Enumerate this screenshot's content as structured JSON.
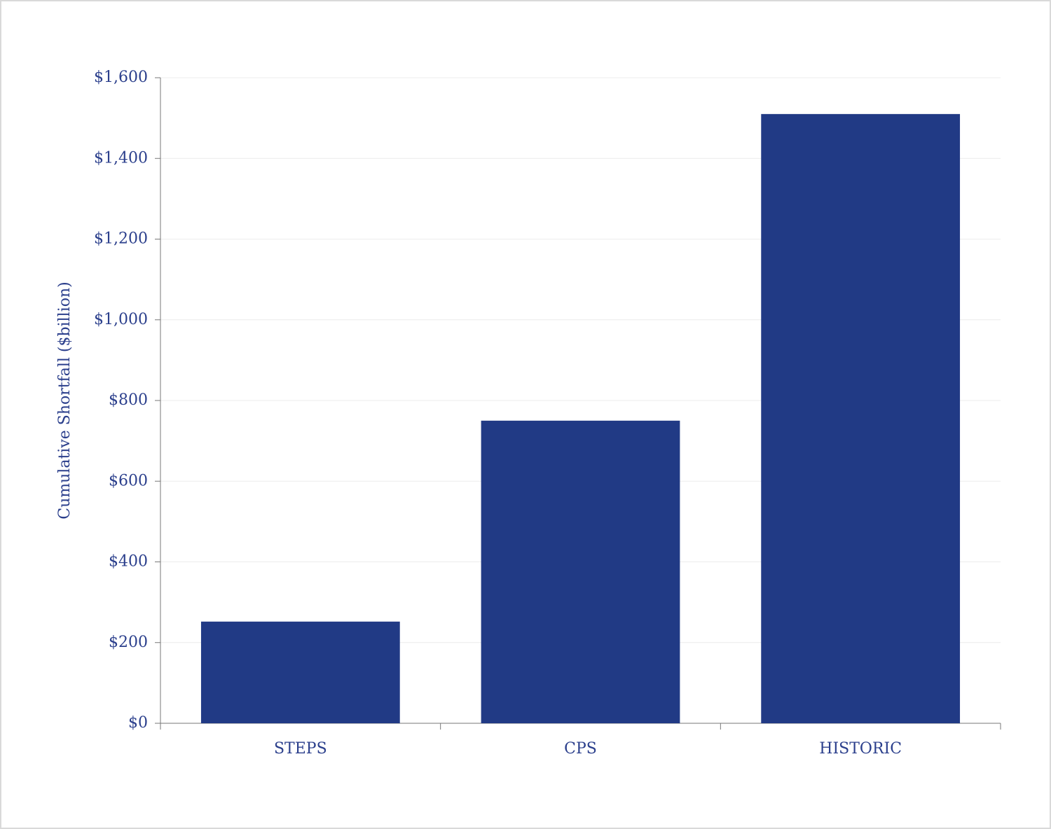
{
  "chart_data": {
    "type": "bar",
    "y_label": "Cumulative Shortfall ($billion)",
    "categories": [
      "STEPS",
      "CPS",
      "HISTORIC"
    ],
    "values": [
      252,
      750,
      1510
    ],
    "color": "#213a85",
    "ylim": [
      0,
      1600
    ],
    "yticks": [
      {
        "value": 0,
        "label": "$0"
      },
      {
        "value": 200,
        "label": "$200"
      },
      {
        "value": 400,
        "label": "$400"
      },
      {
        "value": 600,
        "label": "$600"
      },
      {
        "value": 800,
        "label": "$800"
      },
      {
        "value": 1000,
        "label": "$1,000"
      },
      {
        "value": 1200,
        "label": "$1,200"
      },
      {
        "value": 1400,
        "label": "$1,400"
      },
      {
        "value": 1600,
        "label": "$1,600"
      }
    ],
    "grid": true
  }
}
